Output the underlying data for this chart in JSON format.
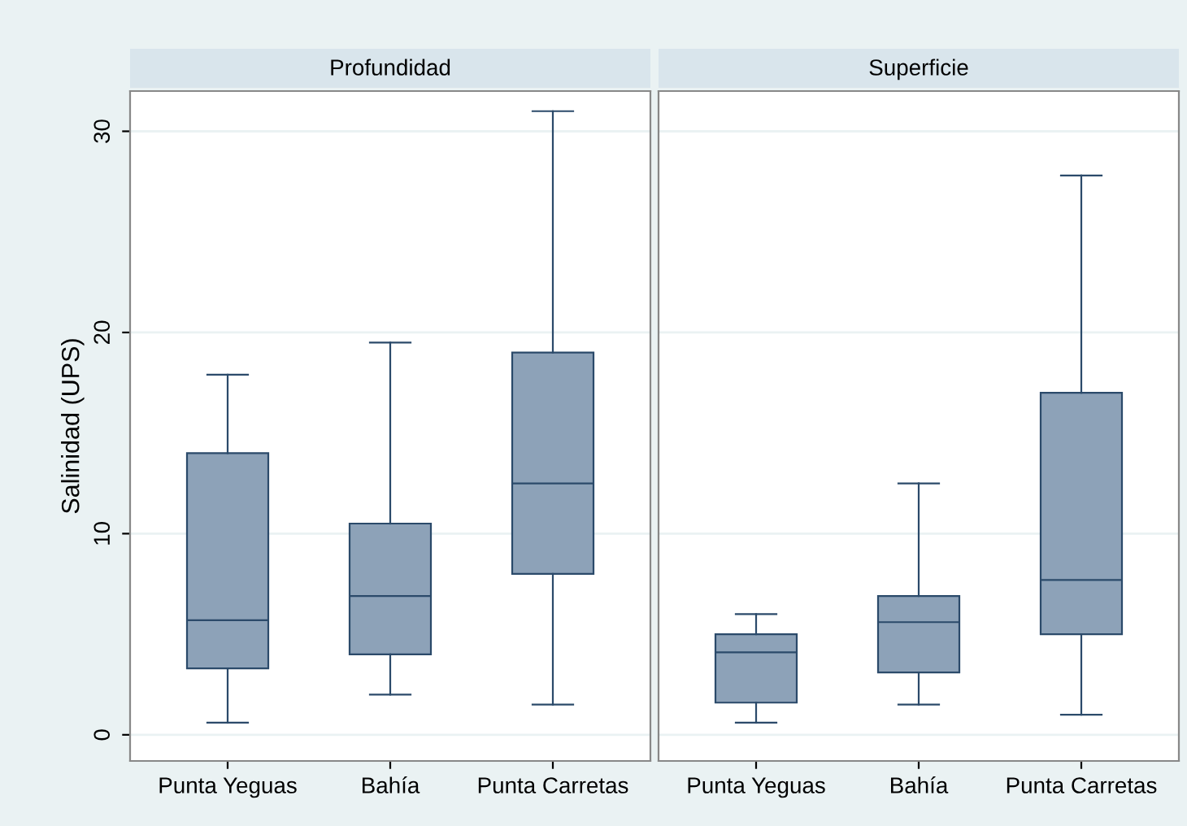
{
  "chart_data": [
    {
      "type": "box",
      "title": "Profundidad",
      "ylabel": "Salinidad (UPS)",
      "categories": [
        "Punta Yeguas",
        "Bahía",
        "Punta Carretas"
      ],
      "color": "#8da2b8",
      "ylim": [
        -1.3,
        32
      ],
      "yticks": [
        0,
        10,
        20,
        30
      ],
      "grid": "y",
      "boxes": [
        {
          "low": 0.6,
          "q1": 3.3,
          "median": 5.7,
          "q3": 14.0,
          "high": 17.9
        },
        {
          "low": 2.0,
          "q1": 4.0,
          "median": 6.9,
          "q3": 10.5,
          "high": 19.5
        },
        {
          "low": 1.5,
          "q1": 8.0,
          "median": 12.5,
          "q3": 19.0,
          "high": 31.0
        }
      ]
    },
    {
      "type": "box",
      "title": "Superficie",
      "categories": [
        "Punta Yeguas",
        "Bahía",
        "Punta Carretas"
      ],
      "color": "#8da2b8",
      "ylim": [
        -1.3,
        32
      ],
      "yticks": [
        0,
        10,
        20,
        30
      ],
      "grid": "y",
      "tick_labels": "x",
      "boxes": [
        {
          "low": 0.6,
          "q1": 1.6,
          "median": 4.1,
          "q3": 5.0,
          "high": 6.0
        },
        {
          "low": 1.5,
          "q1": 3.1,
          "median": 5.6,
          "q3": 6.9,
          "high": 12.5
        },
        {
          "low": 1.0,
          "q1": 5.0,
          "median": 7.7,
          "q3": 17.0,
          "high": 27.8
        }
      ]
    }
  ]
}
